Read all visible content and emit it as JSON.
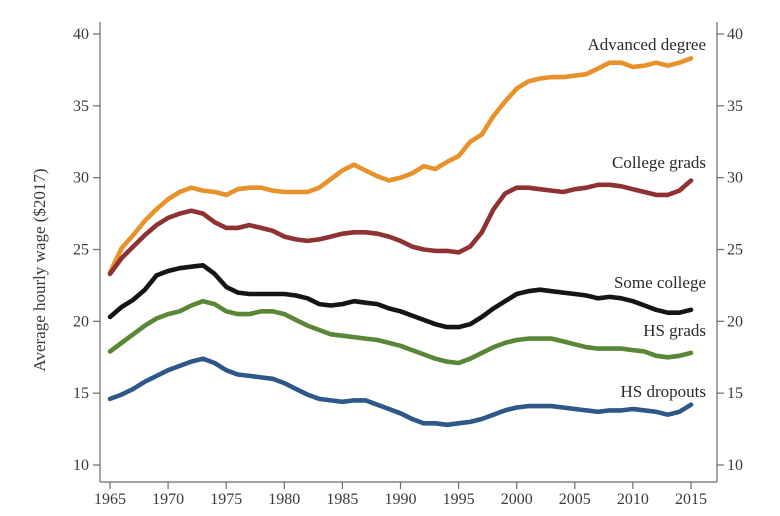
{
  "chart_data": {
    "type": "line",
    "title": "",
    "xlabel": "",
    "ylabel": "Average hourly wage ($2017)",
    "xlim": [
      1965,
      2015
    ],
    "ylim": [
      10,
      40
    ],
    "x_ticks": [
      1965,
      1970,
      1975,
      1980,
      1985,
      1990,
      1995,
      2000,
      2005,
      2010,
      2015
    ],
    "y_ticks": [
      10,
      15,
      20,
      25,
      30,
      35,
      40
    ],
    "secondary_y_axis": true,
    "grid": false,
    "legend": "direct labels at right",
    "x": [
      1965,
      1966,
      1967,
      1968,
      1969,
      1970,
      1971,
      1972,
      1973,
      1974,
      1975,
      1976,
      1977,
      1978,
      1979,
      1980,
      1981,
      1982,
      1983,
      1984,
      1985,
      1986,
      1987,
      1988,
      1989,
      1990,
      1991,
      1992,
      1993,
      1994,
      1995,
      1996,
      1997,
      1998,
      1999,
      2000,
      2001,
      2002,
      2003,
      2004,
      2005,
      2006,
      2007,
      2008,
      2009,
      2010,
      2011,
      2012,
      2013,
      2014,
      2015
    ],
    "series": [
      {
        "name": "Advanced degree",
        "color": "#e8922c",
        "values": [
          23.4,
          25.1,
          26.0,
          27.0,
          27.8,
          28.5,
          29.0,
          29.3,
          29.1,
          29.0,
          28.8,
          29.2,
          29.3,
          29.3,
          29.1,
          29.0,
          29.0,
          29.0,
          29.3,
          29.9,
          30.5,
          30.9,
          30.5,
          30.1,
          29.8,
          30.0,
          30.3,
          30.8,
          30.6,
          31.1,
          31.5,
          32.5,
          33.0,
          34.3,
          35.3,
          36.2,
          36.7,
          36.9,
          37.0,
          37.0,
          37.1,
          37.2,
          37.6,
          38.0,
          38.0,
          37.7,
          37.8,
          38.0,
          37.8,
          38.0,
          38.3
        ]
      },
      {
        "name": "College grads",
        "color": "#8e3234",
        "values": [
          23.3,
          24.4,
          25.2,
          26.0,
          26.7,
          27.2,
          27.5,
          27.7,
          27.5,
          26.9,
          26.5,
          26.5,
          26.7,
          26.5,
          26.3,
          25.9,
          25.7,
          25.6,
          25.7,
          25.9,
          26.1,
          26.2,
          26.2,
          26.1,
          25.9,
          25.6,
          25.2,
          25.0,
          24.9,
          24.9,
          24.8,
          25.2,
          26.2,
          27.8,
          28.9,
          29.3,
          29.3,
          29.2,
          29.1,
          29.0,
          29.2,
          29.3,
          29.5,
          29.5,
          29.4,
          29.2,
          29.0,
          28.8,
          28.8,
          29.1,
          29.8
        ]
      },
      {
        "name": "Some college",
        "color": "#151515",
        "values": [
          20.3,
          21.0,
          21.5,
          22.2,
          23.2,
          23.5,
          23.7,
          23.8,
          23.9,
          23.3,
          22.4,
          22.0,
          21.9,
          21.9,
          21.9,
          21.9,
          21.8,
          21.6,
          21.2,
          21.1,
          21.2,
          21.4,
          21.3,
          21.2,
          20.9,
          20.7,
          20.4,
          20.1,
          19.8,
          19.6,
          19.6,
          19.8,
          20.3,
          20.9,
          21.4,
          21.9,
          22.1,
          22.2,
          22.1,
          22.0,
          21.9,
          21.8,
          21.6,
          21.7,
          21.6,
          21.4,
          21.1,
          20.8,
          20.6,
          20.6,
          20.8
        ]
      },
      {
        "name": "HS grads",
        "color": "#5a8637",
        "values": [
          17.9,
          18.5,
          19.1,
          19.7,
          20.2,
          20.5,
          20.7,
          21.1,
          21.4,
          21.2,
          20.7,
          20.5,
          20.5,
          20.7,
          20.7,
          20.5,
          20.1,
          19.7,
          19.4,
          19.1,
          19.0,
          18.9,
          18.8,
          18.7,
          18.5,
          18.3,
          18.0,
          17.7,
          17.4,
          17.2,
          17.1,
          17.4,
          17.8,
          18.2,
          18.5,
          18.7,
          18.8,
          18.8,
          18.8,
          18.6,
          18.4,
          18.2,
          18.1,
          18.1,
          18.1,
          18.0,
          17.9,
          17.6,
          17.5,
          17.6,
          17.8
        ]
      },
      {
        "name": "HS dropouts",
        "color": "#2d5887",
        "values": [
          14.6,
          14.9,
          15.3,
          15.8,
          16.2,
          16.6,
          16.9,
          17.2,
          17.4,
          17.1,
          16.6,
          16.3,
          16.2,
          16.1,
          16.0,
          15.7,
          15.3,
          14.9,
          14.6,
          14.5,
          14.4,
          14.5,
          14.5,
          14.2,
          13.9,
          13.6,
          13.2,
          12.9,
          12.9,
          12.8,
          12.9,
          13.0,
          13.2,
          13.5,
          13.8,
          14.0,
          14.1,
          14.1,
          14.1,
          14.0,
          13.9,
          13.8,
          13.7,
          13.8,
          13.8,
          13.9,
          13.8,
          13.7,
          13.5,
          13.7,
          14.2
        ]
      }
    ]
  }
}
